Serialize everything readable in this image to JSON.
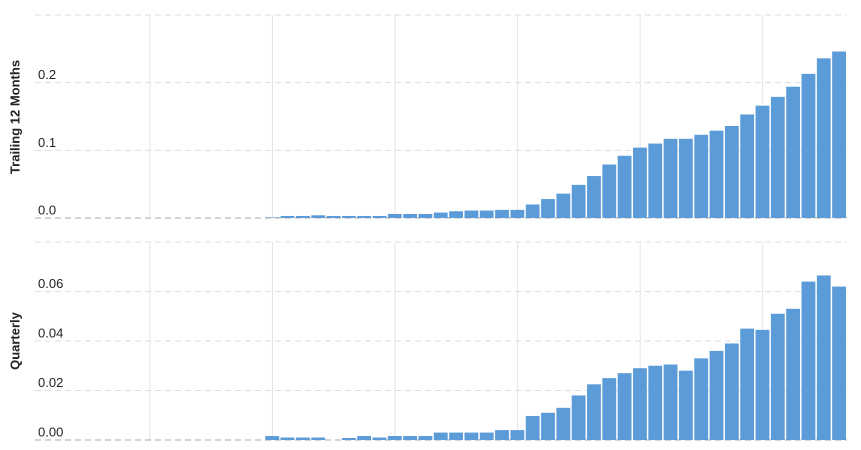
{
  "chart_data": [
    {
      "type": "bar",
      "y_label": "Trailing 12 Months",
      "color": "#5b9bd8",
      "grid": true,
      "ylim": [
        0,
        0.3
      ],
      "yticks": [
        {
          "value": 0,
          "label": "0.0"
        },
        0.1,
        0.2
      ],
      "values": [
        null,
        null,
        null,
        null,
        null,
        null,
        null,
        null,
        null,
        null,
        null,
        null,
        null,
        null,
        null,
        0.001,
        0.003,
        0.003,
        0.004,
        0.003,
        0.003,
        0.003,
        0.003,
        0.006,
        0.006,
        0.006,
        0.008,
        0.01,
        0.011,
        0.011,
        0.012,
        0.012,
        0.02,
        0.028,
        0.036,
        0.049,
        0.062,
        0.079,
        0.092,
        0.104,
        0.11,
        0.117,
        0.117,
        0.123,
        0.129,
        0.136,
        0.153,
        0.166,
        0.179,
        0.194,
        0.213,
        0.236,
        0.246
      ]
    },
    {
      "type": "bar",
      "y_label": "Quarterly",
      "color": "#5b9bd8",
      "grid": true,
      "ylim": [
        0,
        0.08
      ],
      "yticks": [
        {
          "value": 0,
          "label": "0.00"
        },
        {
          "value": 0.02,
          "label": "0.02"
        },
        {
          "value": 0.04,
          "label": "0.04"
        },
        {
          "value": 0.06,
          "label": "0.06"
        }
      ],
      "values": [
        null,
        null,
        null,
        null,
        null,
        null,
        null,
        null,
        null,
        null,
        null,
        null,
        null,
        null,
        null,
        0.0016,
        0.001,
        0.001,
        0.001,
        0,
        0.0008,
        0.0016,
        0.001,
        0.0016,
        0.0016,
        0.0016,
        0.003,
        0.003,
        0.003,
        0.003,
        0.004,
        0.004,
        0.0097,
        0.011,
        0.013,
        0.018,
        0.0225,
        0.025,
        0.027,
        0.029,
        0.03,
        0.0305,
        0.028,
        0.033,
        0.036,
        0.039,
        0.045,
        0.0445,
        0.051,
        0.053,
        0.064,
        0.0665,
        0.062
      ]
    }
  ]
}
